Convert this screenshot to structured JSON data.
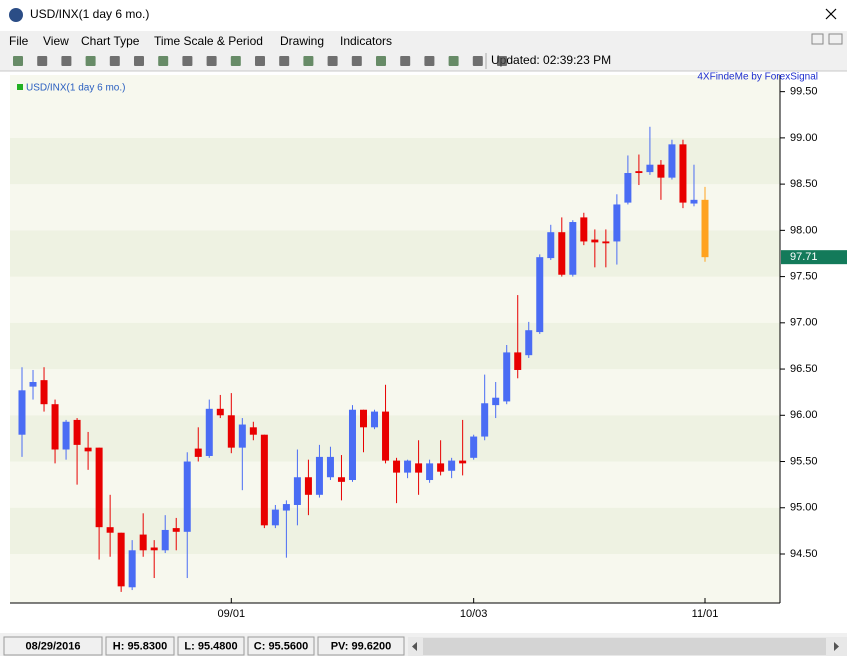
{
  "window": {
    "title": "USD/INX(1 day  6 mo.)"
  },
  "menu": [
    "File",
    "View",
    "Chart Type",
    "Time Scale & Period",
    "Drawing",
    "Indicators"
  ],
  "toolbar": {
    "updated": "Updated: 02:39:23 PM"
  },
  "status_bar": [
    "08/29/2016",
    "H: 95.8300",
    "L: 95.4800",
    "C: 95.5600",
    "PV: 99.6200"
  ],
  "chart_data": {
    "type": "candlestick",
    "title": "USD/INX(1 day 6 mo.)",
    "watermark": "4XFindeMe by ForexSignal",
    "categories": [
      null,
      null,
      null,
      null,
      null,
      null,
      null,
      null,
      null,
      null,
      null,
      null,
      null,
      null,
      null,
      null,
      null,
      null,
      null,
      "09/01",
      null,
      null,
      null,
      null,
      null,
      null,
      null,
      null,
      null,
      null,
      null,
      null,
      null,
      null,
      null,
      null,
      null,
      null,
      null,
      null,
      null,
      "10/03",
      null,
      null,
      null,
      null,
      null,
      null,
      null,
      null,
      null,
      null,
      null,
      null,
      null,
      null,
      null,
      null,
      null,
      null,
      null,
      null,
      "11/01"
    ],
    "open": [
      95.79,
      96.31,
      96.38,
      96.12,
      95.63,
      95.95,
      95.65,
      95.65,
      94.79,
      94.73,
      94.14,
      94.71,
      94.57,
      94.54,
      94.78,
      94.74,
      95.64,
      95.56,
      96.07,
      96.0,
      95.65,
      95.87,
      95.79,
      94.81,
      94.97,
      95.03,
      95.33,
      95.14,
      95.33,
      95.33,
      95.3,
      96.06,
      95.87,
      96.04,
      95.51,
      95.38,
      95.48,
      95.3,
      95.48,
      95.4,
      95.51,
      95.54,
      95.77,
      96.11,
      96.15,
      96.68,
      96.65,
      96.9,
      97.7,
      97.98,
      97.52,
      98.14,
      97.9,
      97.88,
      97.88,
      98.3,
      98.64,
      98.63,
      98.71,
      98.57,
      98.93,
      98.29,
      98.33
    ],
    "high": [
      96.52,
      96.49,
      96.52,
      96.17,
      95.95,
      95.97,
      95.82,
      95.65,
      95.14,
      94.73,
      94.65,
      94.94,
      94.65,
      94.92,
      94.89,
      95.6,
      95.87,
      96.17,
      96.22,
      96.24,
      95.97,
      95.93,
      95.79,
      95.03,
      95.08,
      95.63,
      95.52,
      95.68,
      95.66,
      95.57,
      96.11,
      96.06,
      96.06,
      96.33,
      95.54,
      95.52,
      95.73,
      95.52,
      95.73,
      95.54,
      95.95,
      95.79,
      96.44,
      96.36,
      96.76,
      97.3,
      97.01,
      97.74,
      98.06,
      98.14,
      98.11,
      98.19,
      98.01,
      98.01,
      98.39,
      98.81,
      98.82,
      99.12,
      98.76,
      98.98,
      98.98,
      98.71,
      98.47
    ],
    "low": [
      95.55,
      96.17,
      96.04,
      95.48,
      95.52,
      95.25,
      95.41,
      94.44,
      94.47,
      94.09,
      94.11,
      94.47,
      94.24,
      94.51,
      94.54,
      94.24,
      95.5,
      95.54,
      95.97,
      95.59,
      95.19,
      95.73,
      94.78,
      94.78,
      94.46,
      94.81,
      94.92,
      95.11,
      95.3,
      95.08,
      95.28,
      95.6,
      95.85,
      95.48,
      95.05,
      95.32,
      95.14,
      95.27,
      95.35,
      95.32,
      95.35,
      95.52,
      95.73,
      95.97,
      96.12,
      96.4,
      96.62,
      96.88,
      97.68,
      97.5,
      97.5,
      97.84,
      97.6,
      97.6,
      97.63,
      98.28,
      98.49,
      98.6,
      98.33,
      98.55,
      98.24,
      98.26,
      97.66
    ],
    "close": [
      96.27,
      96.36,
      96.12,
      95.63,
      95.93,
      95.68,
      95.61,
      94.79,
      94.73,
      94.15,
      94.54,
      94.54,
      94.54,
      94.76,
      94.74,
      95.5,
      95.55,
      96.07,
      96.0,
      95.65,
      95.9,
      95.79,
      94.81,
      94.98,
      95.04,
      95.33,
      95.14,
      95.55,
      95.55,
      95.28,
      96.06,
      95.87,
      96.04,
      95.51,
      95.38,
      95.51,
      95.38,
      95.48,
      95.39,
      95.51,
      95.48,
      95.77,
      96.13,
      96.19,
      96.68,
      96.49,
      96.92,
      97.71,
      97.98,
      97.52,
      98.09,
      97.88,
      97.87,
      97.86,
      98.28,
      98.62,
      98.62,
      98.71,
      98.57,
      98.93,
      98.3,
      98.33,
      97.71
    ],
    "up_color": "#4a6cf4",
    "down_color": "#e80000",
    "last_color": "#ffa21f",
    "price_marker_color": "#137a5a",
    "legend_color": "#22b022",
    "stripes": true,
    "stripe_colors": [
      "#f7f8ee",
      "#eef2e2"
    ],
    "ylim": [
      93.97,
      99.68
    ],
    "yticks": [
      {
        "value": 94.5,
        "label": "94.50"
      },
      {
        "value": 95,
        "label": "95.00"
      },
      {
        "value": 95.5,
        "label": "95.50"
      },
      {
        "value": 96,
        "label": "96.00"
      },
      {
        "value": 96.5,
        "label": "96.50"
      },
      {
        "value": 97,
        "label": "97.00"
      },
      {
        "value": 97.5,
        "label": "97.50"
      },
      {
        "value": 98,
        "label": "98.00"
      },
      {
        "value": 98.5,
        "label": "98.50"
      },
      {
        "value": 99,
        "label": "99.00"
      },
      {
        "value": 99.5,
        "label": "99.50"
      }
    ]
  }
}
